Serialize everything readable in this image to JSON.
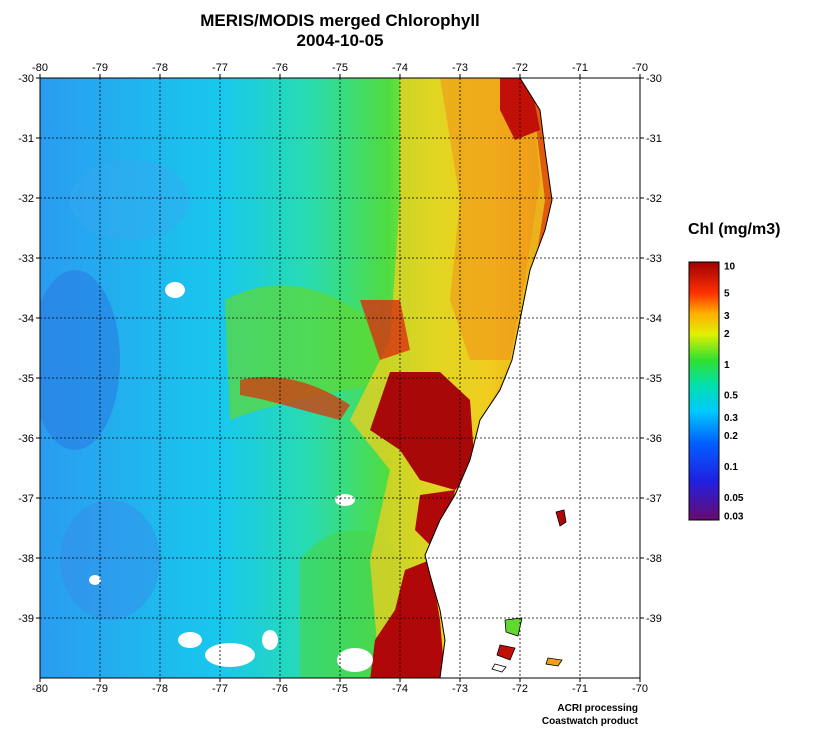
{
  "title_line1": "MERIS/MODIS merged Chlorophyll",
  "title_line2": "2004-10-05",
  "map": {
    "lon_range": [
      -80,
      -70
    ],
    "lat_range": [
      -40,
      -30
    ],
    "lon_ticks": [
      "-80",
      "-79",
      "-78",
      "-77",
      "-76",
      "-75",
      "-74",
      "-73",
      "-72",
      "-71",
      "-70"
    ],
    "lat_ticks": [
      "-30",
      "-31",
      "-32",
      "-33",
      "-34",
      "-35",
      "-36",
      "-37",
      "-38",
      "-39"
    ],
    "grid": "dotted"
  },
  "colorbar": {
    "title": "Chl (mg/m3)",
    "scale": "log",
    "range": [
      0.03,
      10
    ],
    "labels": [
      "10",
      "5",
      "3",
      "2",
      "1",
      "0.5",
      "0.3",
      "0.2",
      "0.1",
      "0.05",
      "0.03"
    ],
    "values": [
      10,
      5,
      3,
      2,
      1,
      0.5,
      0.3,
      0.2,
      0.1,
      0.05,
      0.03
    ],
    "colors": [
      "#6a0a6e",
      "#1a1aff",
      "#00b4ff",
      "#00e0e0",
      "#30e030",
      "#ffff00",
      "#ff9a00",
      "#ff2a00",
      "#a80000"
    ]
  },
  "credit_line1": "ACRI processing",
  "credit_line2": "Coastwatch product"
}
